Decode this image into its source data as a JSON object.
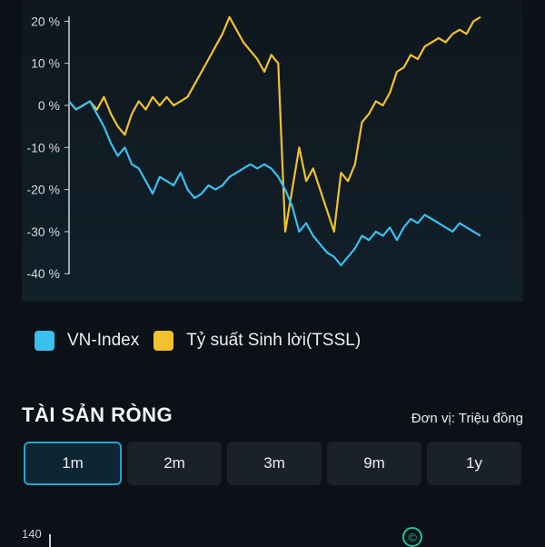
{
  "chart_data": {
    "type": "line",
    "ylabel": "",
    "ylim": [
      -40,
      25
    ],
    "yticks": [
      "20 %",
      "10 %",
      "0 %",
      "-10 %",
      "-20 %",
      "-30 %",
      "-40 %"
    ],
    "yticks_values": [
      20,
      10,
      0,
      -10,
      -20,
      -30,
      -40
    ],
    "series": [
      {
        "name": "VN-Index",
        "color": "#39c0ee",
        "values": [
          1,
          -1,
          0,
          1,
          -2,
          -5,
          -9,
          -12,
          -10,
          -14,
          -15,
          -18,
          -21,
          -17,
          -18,
          -19,
          -16,
          -20,
          -22,
          -21,
          -19,
          -20,
          -19,
          -17,
          -16,
          -15,
          -14,
          -15,
          -14,
          -15,
          -17,
          -20,
          -24,
          -30,
          -28,
          -31,
          -33,
          -35,
          -36,
          -38,
          -36,
          -34,
          -31,
          -32,
          -30,
          -31,
          -29,
          -32,
          -29,
          -27,
          -28,
          -26,
          -27,
          -28,
          -29,
          -30,
          -28,
          -29,
          -30,
          -31
        ]
      },
      {
        "name": "Tỷ suất Sinh lời(TSSL)",
        "color": "#f2c12e",
        "values": [
          1,
          -1,
          0,
          1,
          -1,
          2,
          -2,
          -5,
          -7,
          -2,
          1,
          -1,
          2,
          0,
          2,
          0,
          1,
          2,
          5,
          8,
          11,
          14,
          17,
          21,
          18,
          15,
          13,
          11,
          8,
          12,
          10,
          -30,
          -20,
          -10,
          -18,
          -15,
          -20,
          -25,
          -30,
          -16,
          -18,
          -14,
          -4,
          -2,
          1,
          0,
          3,
          8,
          9,
          12,
          11,
          14,
          15,
          16,
          15,
          17,
          18,
          17,
          20,
          21
        ]
      }
    ]
  },
  "legend": {
    "vnindex_label": "VN-Index",
    "tssl_label": "Tỷ suất Sinh lời(TSSL)",
    "vnindex_color": "#39c0ee",
    "tssl_color": "#f2c12e"
  },
  "section": {
    "title": "TÀI SẢN RÒNG",
    "unit": "Đơn vị: Triệu đồng"
  },
  "tabs": [
    {
      "label": "1m",
      "active": true
    },
    {
      "label": "2m",
      "active": false
    },
    {
      "label": "3m",
      "active": false
    },
    {
      "label": "9m",
      "active": false
    },
    {
      "label": "1y",
      "active": false
    }
  ],
  "second_chart": {
    "first_tick": "140",
    "icon": "copyright-icon"
  }
}
